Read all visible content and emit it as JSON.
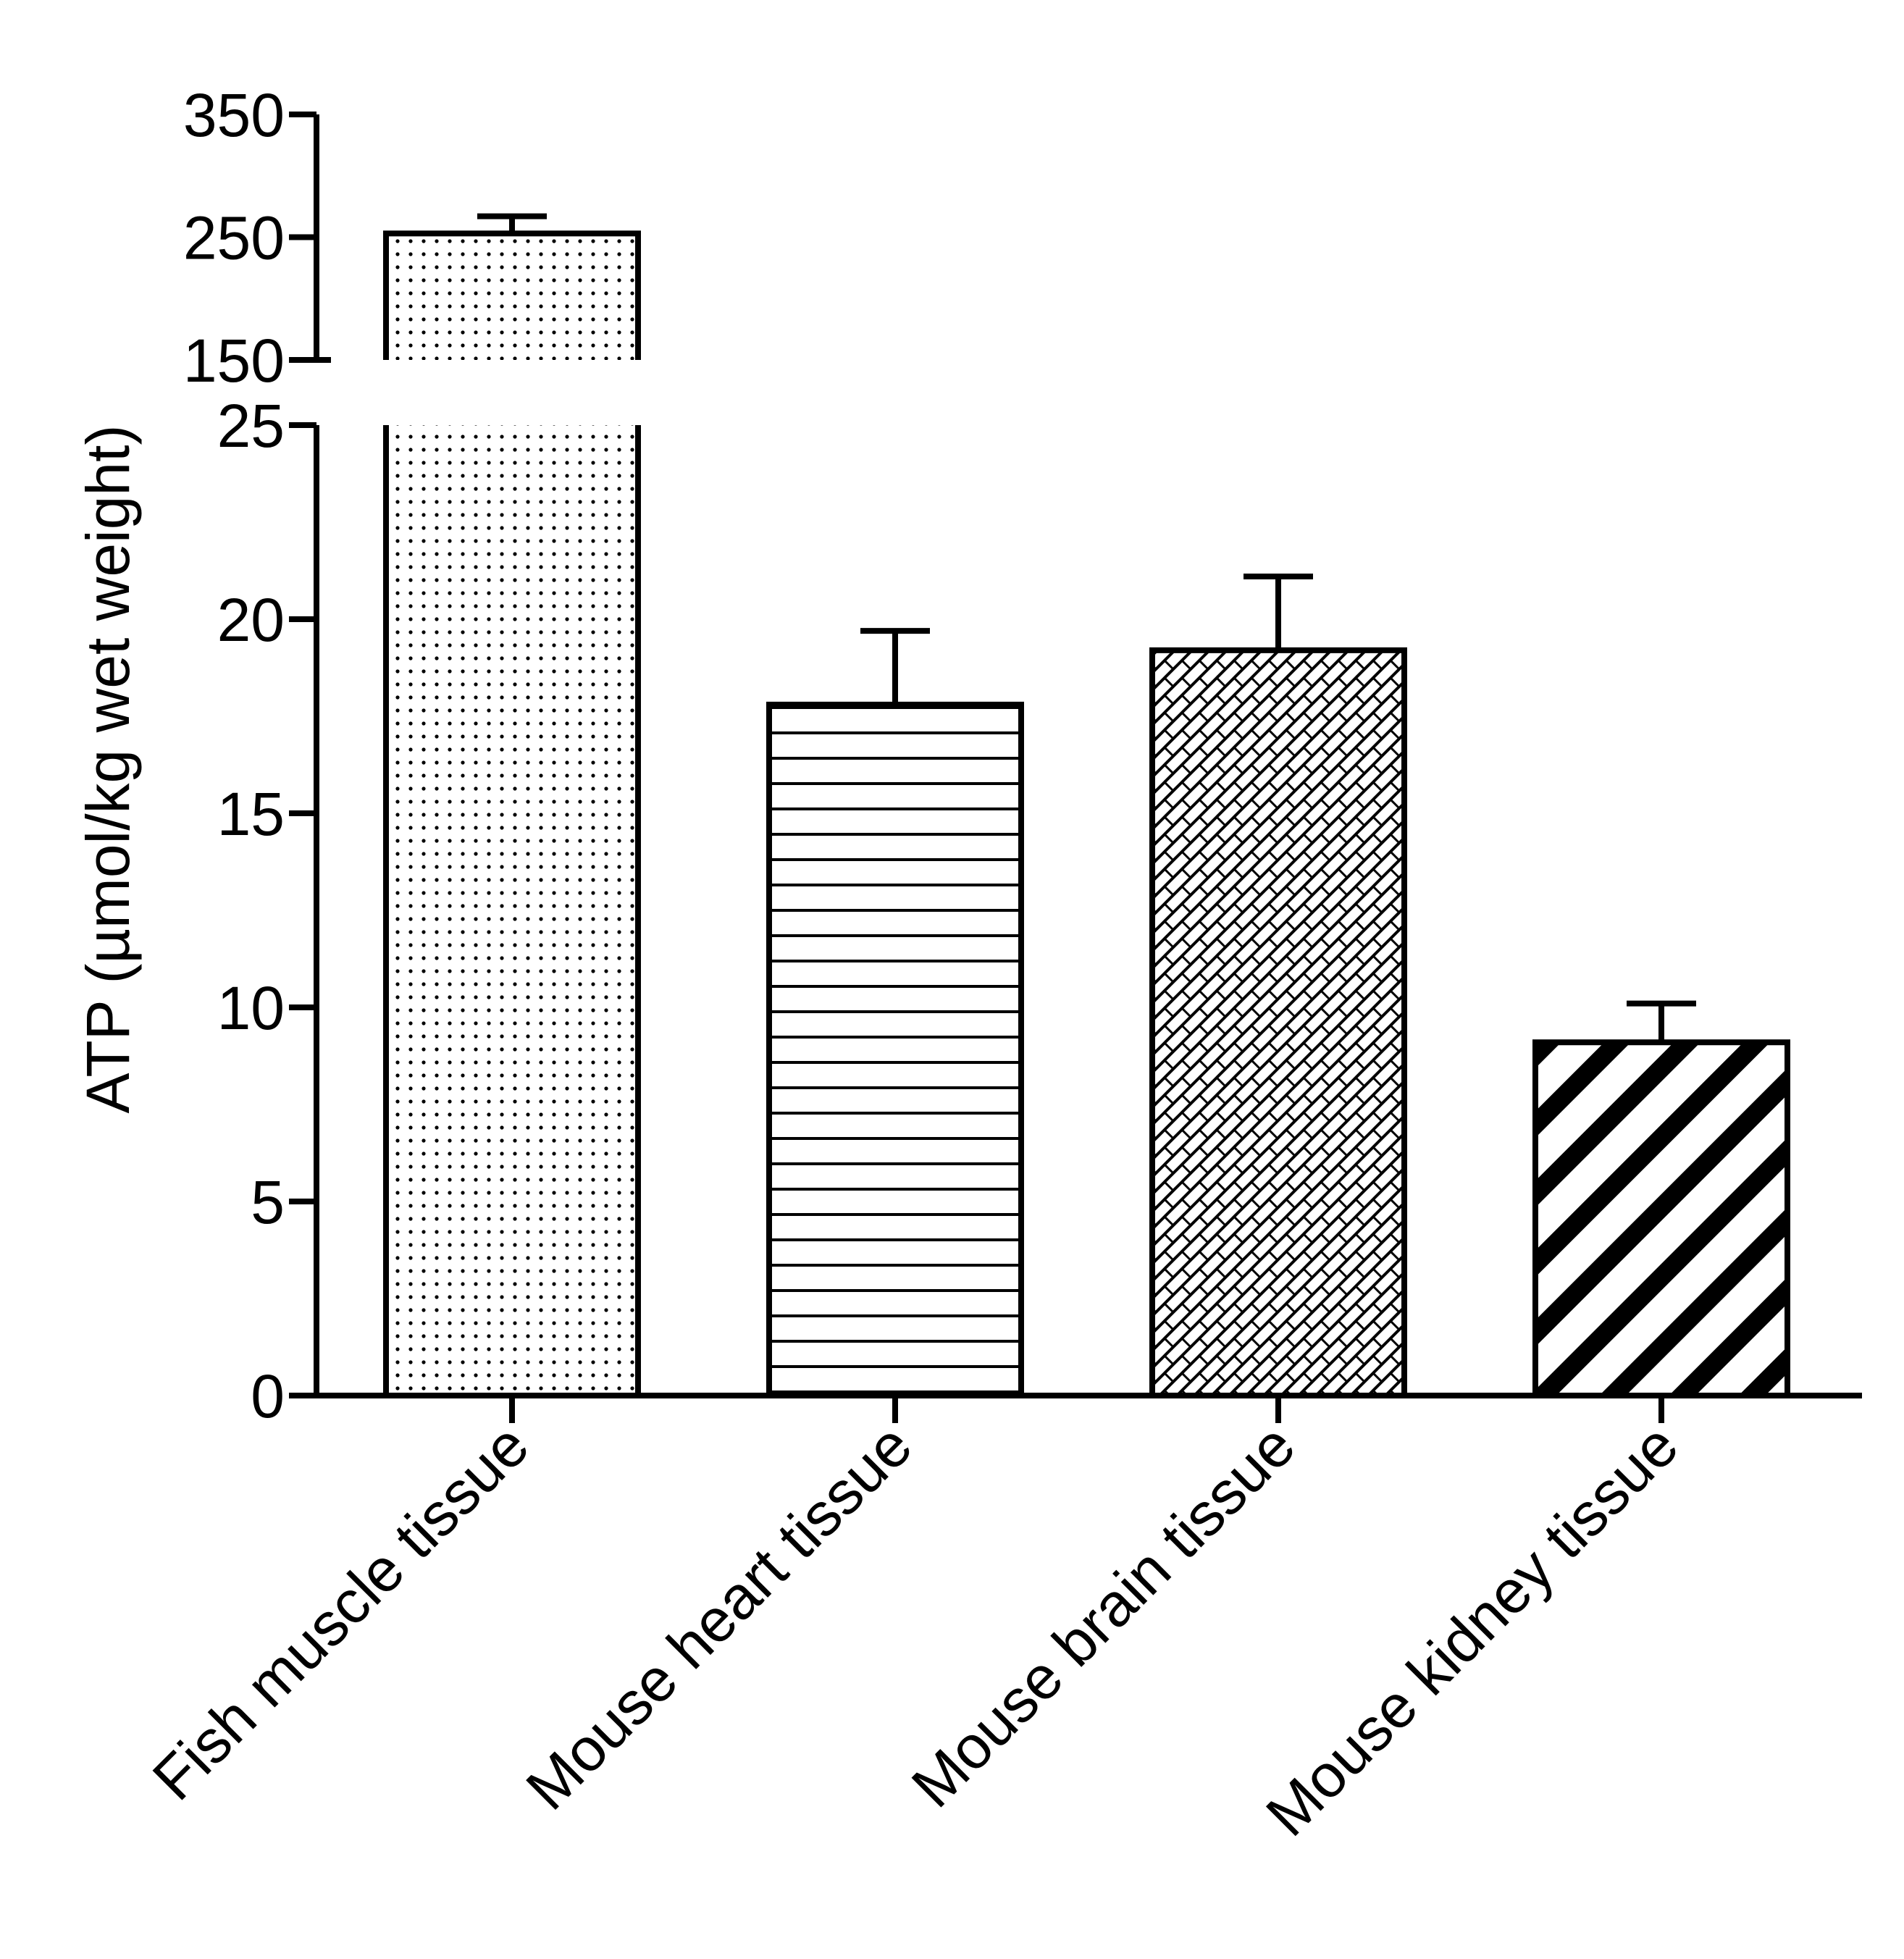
{
  "chart_data": {
    "type": "bar",
    "title": "",
    "xlabel": "",
    "ylabel": "ATP (µmol/kg wet weight)",
    "categories": [
      "Fish muscle tissue",
      "Mouse heart tissue",
      "Mouse brain tissue",
      "Mouse kidney tissue"
    ],
    "values": [
      253,
      17.8,
      19.2,
      9.1
    ],
    "error": [
      14,
      1.9,
      1.9,
      1.0
    ],
    "patterns": [
      "dots",
      "horizontal-lines",
      "crosshatch",
      "diagonal-stripes"
    ],
    "y_axis_broken": true,
    "ylim_lower": [
      0,
      25
    ],
    "ylim_upper": [
      150,
      350
    ],
    "yticks_lower": [
      0,
      5,
      10,
      15,
      20,
      25
    ],
    "yticks_upper": [
      150,
      250,
      350
    ],
    "grid": false,
    "colors": {
      "bar_fill": "#ffffff",
      "stroke": "#000000"
    }
  }
}
